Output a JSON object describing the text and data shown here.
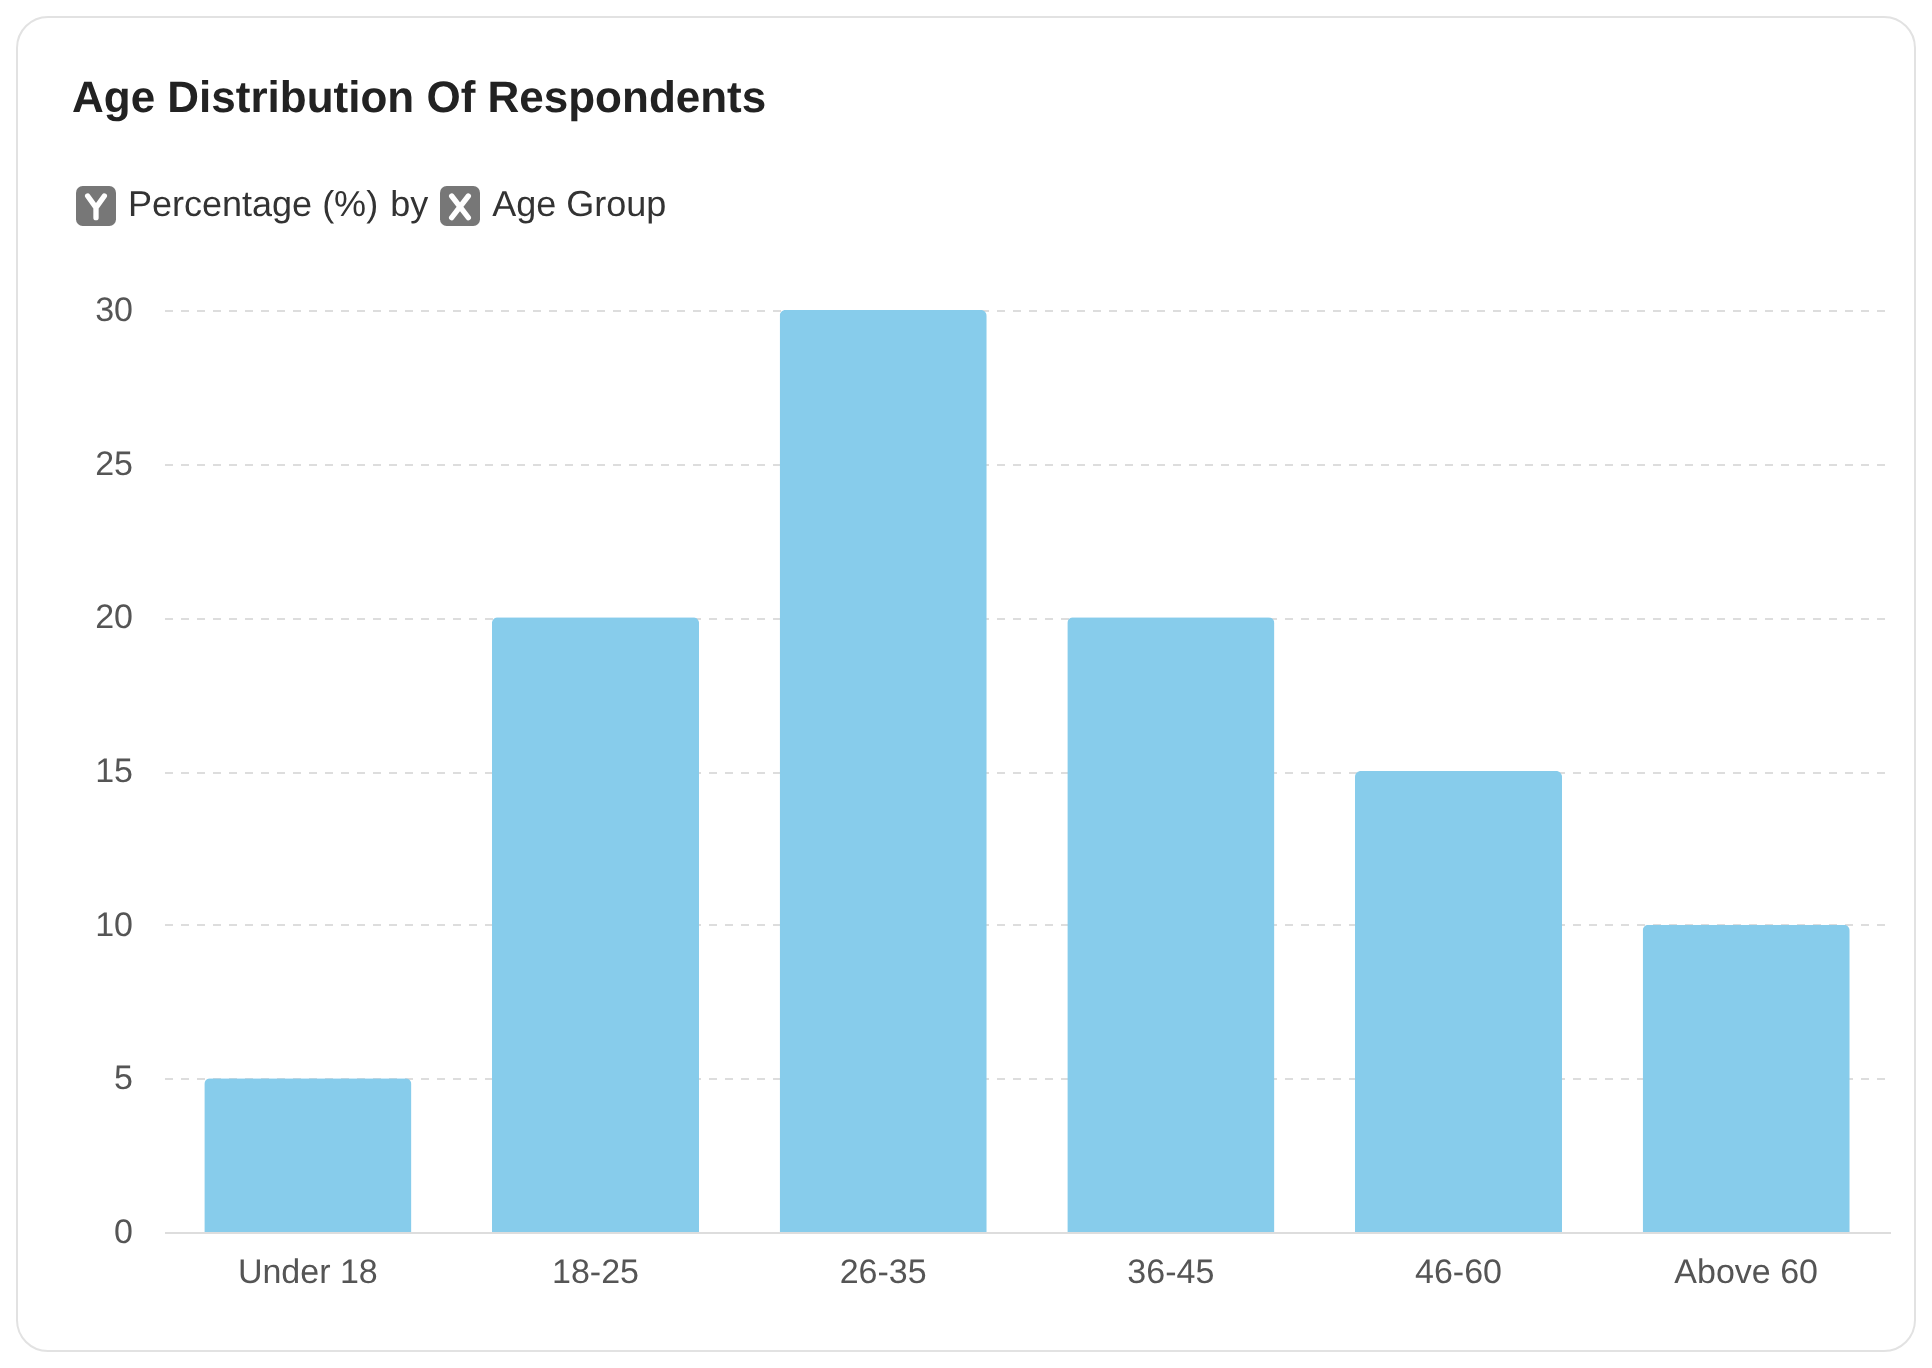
{
  "chart_data": {
    "type": "bar",
    "title": "Age Distribution Of Respondents",
    "ylabel": "Percentage (%)",
    "xlabel": "Age Group",
    "annotations": [
      "by"
    ],
    "categories": [
      "Under 18",
      "18-25",
      "26-35",
      "36-45",
      "46-60",
      "Above 60"
    ],
    "values": [
      5,
      20,
      30,
      20,
      15,
      10
    ],
    "color": "#87cceb",
    "ylim": [
      0,
      30
    ],
    "yticks": [
      0,
      5,
      10,
      15,
      20,
      25,
      30
    ],
    "grid": "y"
  }
}
